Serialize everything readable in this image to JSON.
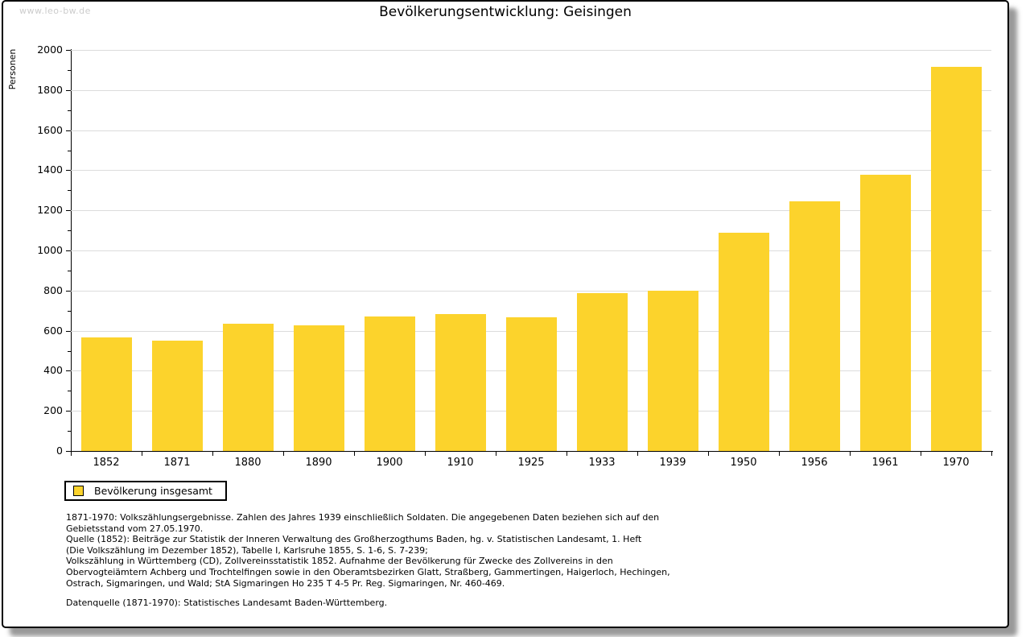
{
  "watermark": "www.leo-bw.de",
  "chart_data": {
    "type": "bar",
    "title": "Bevölkerungsentwicklung: Geisingen",
    "ylabel": "Personen",
    "xlabel": "",
    "categories": [
      "1852",
      "1871",
      "1880",
      "1890",
      "1900",
      "1910",
      "1925",
      "1933",
      "1939",
      "1950",
      "1956",
      "1961",
      "1970"
    ],
    "values": [
      566,
      550,
      634,
      628,
      670,
      681,
      668,
      789,
      800,
      1087,
      1245,
      1378,
      1917
    ],
    "series_name": "Bevölkerung insgesamt",
    "ylim": [
      0,
      2000
    ],
    "ytick_step": 200,
    "yminor_step": 100,
    "grid": true,
    "legend_position": "bottom-left",
    "bar_color": "#FCD32C"
  },
  "legend": {
    "label": "Bevölkerung insgesamt"
  },
  "footnotes": {
    "lines": [
      "1871-1970: Volkszählungsergebnisse. Zahlen des Jahres 1939 einschließlich Soldaten. Die angegebenen Daten beziehen sich auf den",
      "Gebietsstand vom 27.05.1970.",
      "Quelle (1852): Beiträge zur Statistik der Inneren Verwaltung des Großherzogthums Baden, hg. v. Statistischen Landesamt, 1. Heft",
      "(Die Volkszählung im Dezember 1852), Tabelle I, Karlsruhe 1855, S. 1-6, S. 7-239;",
      "Volkszählung in Württemberg (CD), Zollvereinsstatistik 1852. Aufnahme der Bevölkerung für Zwecke des Zollvereins in den",
      "Obervogteiämtern Achberg und Trochtelfingen sowie in den Oberamtsbezirken Glatt, Straßberg, Gammertingen, Haigerloch, Hechingen,",
      "Ostrach, Sigmaringen, und Wald; StA Sigmaringen Ho 235 T 4-5 Pr. Reg. Sigmaringen, Nr. 460-469."
    ],
    "datasource": "Datenquelle (1871-1970): Statistisches Landesamt Baden-Württemberg."
  },
  "colors": {
    "bar": "#FCD32C",
    "grid": "#DCDCDC",
    "axis": "#000000",
    "watermark": "#CCCCCC"
  }
}
